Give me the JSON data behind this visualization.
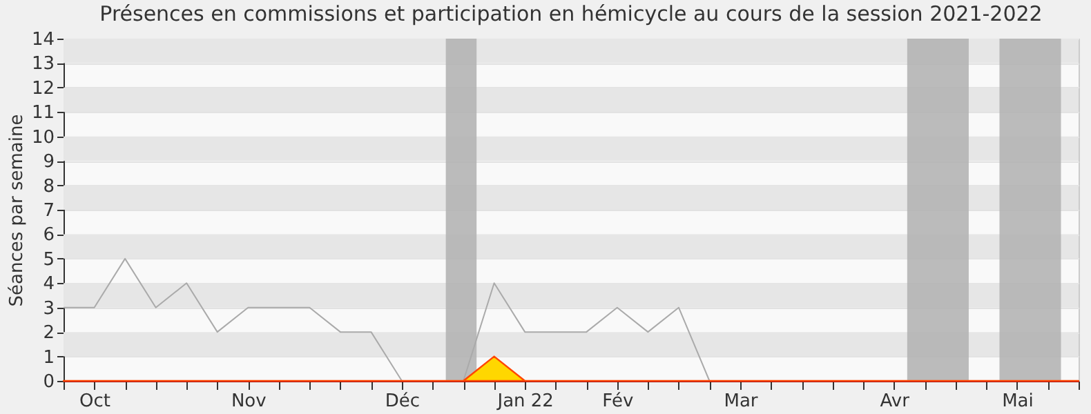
{
  "chart_data": {
    "type": "line",
    "title": "Présences en commissions et participation en hémicycle au cours de la session 2021-2022",
    "ylabel": "Séances par semaine",
    "x": [
      "2021-10-04",
      "2021-10-11",
      "2021-10-18",
      "2021-10-25",
      "2021-11-01",
      "2021-11-08",
      "2021-11-15",
      "2021-11-22",
      "2021-11-29",
      "2021-12-06",
      "2021-12-13",
      "2021-12-20",
      "2021-12-27",
      "2022-01-03",
      "2022-01-10",
      "2022-01-17",
      "2022-01-24",
      "2022-01-31",
      "2022-02-07",
      "2022-02-14",
      "2022-02-21",
      "2022-02-28",
      "2022-03-07",
      "2022-03-14",
      "2022-03-21",
      "2022-03-28",
      "2022-04-04",
      "2022-04-11",
      "2022-04-18",
      "2022-04-25",
      "2022-05-02",
      "2022-05-09",
      "2022-05-16",
      "2022-05-23"
    ],
    "series": [
      {
        "color": "#aaaaaa",
        "values": [
          3,
          3,
          5,
          3,
          4,
          2,
          3,
          3,
          3,
          2,
          2,
          0,
          0,
          0,
          4,
          2,
          2,
          2,
          3,
          2,
          3,
          0,
          0,
          0,
          0,
          0,
          0,
          0,
          0,
          0,
          0,
          0,
          0,
          0
        ]
      },
      {
        "type": "area",
        "color": "#ffd700",
        "values": [
          0,
          0,
          0,
          0,
          0,
          0,
          0,
          0,
          0,
          0,
          0,
          0,
          0,
          0,
          1,
          0,
          0,
          0,
          0,
          0,
          0,
          0,
          0,
          0,
          0,
          0,
          0,
          0,
          0,
          0,
          0,
          0,
          0,
          0
        ]
      }
    ],
    "bands": [
      {
        "axis": "x",
        "from": "2021-12-30",
        "to": "2022-01-06",
        "color": "#b0b0b0"
      },
      {
        "axis": "x",
        "from": "2022-04-14",
        "to": "2022-04-28",
        "color": "#b0b0b0"
      },
      {
        "axis": "x",
        "from": "2022-05-05",
        "to": "2022-05-19",
        "color": "#b0b0b0"
      }
    ],
    "xlim": [
      "2021-10-04",
      "2022-05-23"
    ],
    "xticks": [
      {
        "value": "2021-10-04",
        "label": null
      },
      {
        "value": "2021-10-11",
        "label": "Oct"
      },
      {
        "value": "2021-10-18",
        "label": null
      },
      {
        "value": "2021-10-25",
        "label": null
      },
      {
        "value": "2021-11-01",
        "label": null
      },
      {
        "value": "2021-11-08",
        "label": null
      },
      {
        "value": "2021-11-15",
        "label": "Nov"
      },
      {
        "value": "2021-11-22",
        "label": null
      },
      {
        "value": "2021-11-29",
        "label": null
      },
      {
        "value": "2021-12-06",
        "label": null
      },
      {
        "value": "2021-12-13",
        "label": null
      },
      {
        "value": "2021-12-20",
        "label": "Déc"
      },
      {
        "value": "2021-12-27",
        "label": null
      },
      {
        "value": "2022-01-03",
        "label": null
      },
      {
        "value": "2022-01-10",
        "label": null
      },
      {
        "value": "2022-01-17",
        "label": "Jan 22"
      },
      {
        "value": "2022-01-24",
        "label": null
      },
      {
        "value": "2022-01-31",
        "label": null
      },
      {
        "value": "2022-02-07",
        "label": "Fév"
      },
      {
        "value": "2022-02-14",
        "label": null
      },
      {
        "value": "2022-02-21",
        "label": null
      },
      {
        "value": "2022-02-28",
        "label": null
      },
      {
        "value": "2022-03-07",
        "label": "Mar"
      },
      {
        "value": "2022-03-14",
        "label": null
      },
      {
        "value": "2022-03-21",
        "label": null
      },
      {
        "value": "2022-03-28",
        "label": null
      },
      {
        "value": "2022-04-04",
        "label": null
      },
      {
        "value": "2022-04-11",
        "label": "Avr"
      },
      {
        "value": "2022-04-18",
        "label": null
      },
      {
        "value": "2022-04-25",
        "label": null
      },
      {
        "value": "2022-05-02",
        "label": null
      },
      {
        "value": "2022-05-09",
        "label": "Mai"
      },
      {
        "value": "2022-05-16",
        "label": null
      },
      {
        "value": "2022-05-23",
        "label": null
      }
    ],
    "ylim": [
      0,
      14
    ],
    "yticks": [
      0,
      1,
      2,
      3,
      4,
      5,
      6,
      7,
      8,
      9,
      10,
      11,
      12,
      13,
      14
    ],
    "grid": "y"
  }
}
